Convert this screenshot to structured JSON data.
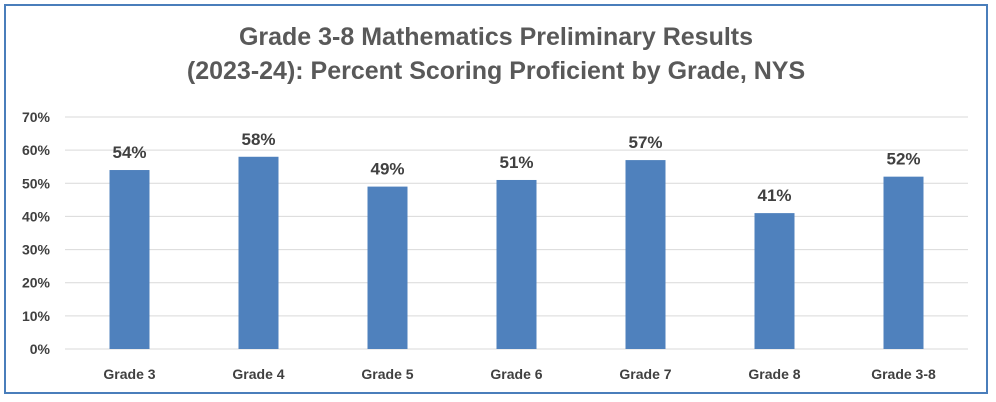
{
  "chart_data": {
    "type": "bar",
    "title_lines": [
      "Grade 3-8 Mathematics Preliminary Results",
      "(2023-24): Percent Scoring Proficient by Grade, NYS"
    ],
    "categories": [
      "Grade 3",
      "Grade 4",
      "Grade 5",
      "Grade 6",
      "Grade 7",
      "Grade 8",
      "Grade 3-8"
    ],
    "values": [
      54,
      58,
      49,
      51,
      57,
      41,
      52
    ],
    "data_labels": [
      "54%",
      "58%",
      "49%",
      "51%",
      "57%",
      "41%",
      "52%"
    ],
    "yticks": [
      "0%",
      "10%",
      "20%",
      "30%",
      "40%",
      "50%",
      "60%",
      "70%"
    ],
    "ylim": [
      0,
      70
    ],
    "xlabel": "",
    "ylabel": "",
    "grid": true,
    "legend": "none",
    "colors": {
      "bar": "#4f81bd",
      "grid": "#d9d9d9",
      "frame": "#4a7ebb",
      "text": "#404040",
      "title": "#595959"
    }
  }
}
